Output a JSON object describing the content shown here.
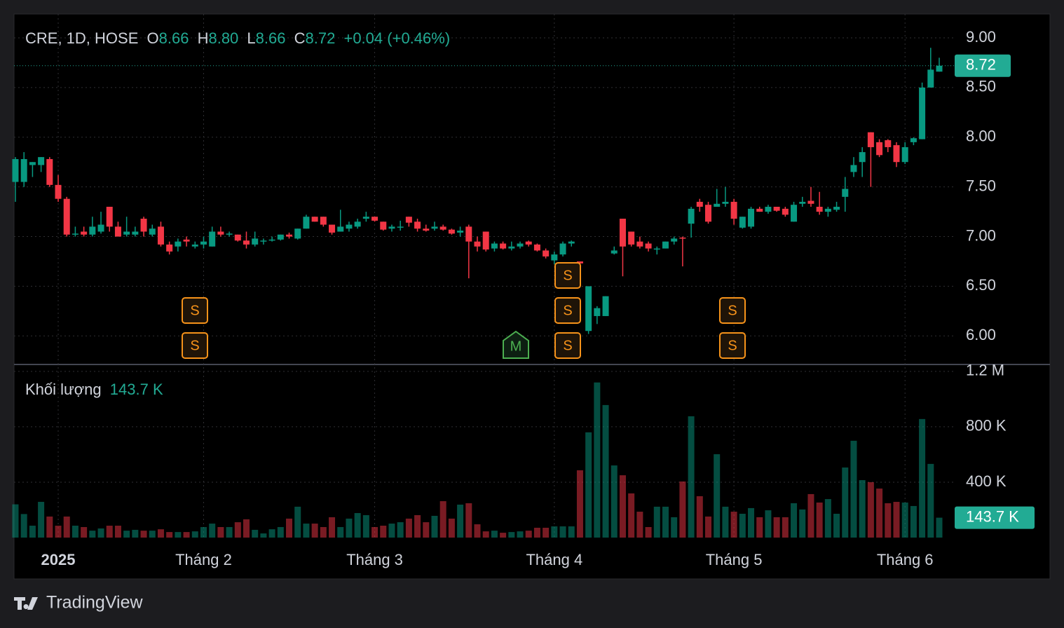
{
  "header": {
    "symbol": "CRE, 1D, HOSE",
    "open": {
      "label": "O",
      "value": "8.66"
    },
    "high": {
      "label": "H",
      "value": "8.80"
    },
    "low": {
      "label": "L",
      "value": "8.66"
    },
    "close": {
      "label": "C",
      "value": "8.72"
    },
    "change": "+0.04",
    "change_percent": "(+0.46%)"
  },
  "chart_data": {
    "type": "candlestick",
    "categories": [
      null,
      null,
      null,
      null,
      null,
      "2025",
      null,
      null,
      null,
      null,
      null,
      null,
      null,
      null,
      null,
      null,
      null,
      null,
      null,
      null,
      null,
      null,
      "Tháng 2",
      null,
      null,
      null,
      null,
      null,
      null,
      null,
      null,
      null,
      null,
      null,
      null,
      null,
      null,
      null,
      null,
      null,
      null,
      null,
      "Tháng 3",
      null,
      null,
      null,
      null,
      null,
      null,
      null,
      null,
      null,
      null,
      null,
      null,
      null,
      null,
      null,
      null,
      null,
      null,
      null,
      null,
      "Tháng 4",
      null,
      null,
      null,
      null,
      null,
      null,
      null,
      null,
      null,
      null,
      null,
      null,
      null,
      null,
      null,
      null,
      null,
      null,
      null,
      null,
      "Tháng 5",
      null,
      null,
      null,
      null,
      null,
      null,
      null,
      null,
      null,
      null,
      null,
      null,
      null,
      null,
      null,
      null,
      null,
      null,
      null,
      "Tháng 6",
      null,
      null,
      null,
      null
    ],
    "open": [
      7.55,
      7.55,
      7.72,
      7.72,
      7.78,
      7.52,
      7.38,
      7.02,
      7.05,
      7.02,
      7.05,
      7.3,
      7.1,
      7.02,
      7.02,
      7.18,
      7.02,
      7.1,
      6.92,
      6.9,
      6.97,
      6.9,
      6.92,
      6.9,
      7.05,
      7.02,
      7.02,
      6.96,
      6.92,
      6.95,
      6.97,
      6.97,
      7.02,
      6.98,
      7.08,
      7.2,
      7.2,
      7.12,
      7.05,
      7.08,
      7.1,
      7.18,
      7.2,
      7.15,
      7.08,
      7.1,
      7.2,
      7.15,
      7.08,
      7.08,
      7.1,
      7.07,
      7.04,
      7.1,
      6.95,
      7.05,
      6.88,
      6.93,
      6.88,
      6.9,
      6.95,
      6.92,
      6.86,
      6.76,
      6.82,
      6.93,
      6.75,
      6.05,
      6.2,
      6.2,
      6.83,
      7.18,
      7.05,
      6.95,
      6.93,
      6.88,
      6.88,
      6.95,
      6.99,
      7.13,
      7.35,
      7.32,
      7.3,
      7.33,
      7.35,
      7.09,
      7.1,
      7.28,
      7.25,
      7.3,
      7.28,
      7.15,
      7.33,
      7.36,
      7.3,
      7.25,
      7.27,
      7.4,
      7.65,
      7.75,
      8.05,
      7.95,
      7.97,
      7.92,
      7.75,
      7.95,
      7.98,
      8.5,
      8.66
    ],
    "high": [
      7.8,
      7.85,
      7.75,
      7.8,
      7.8,
      7.62,
      7.4,
      7.1,
      7.1,
      7.2,
      7.25,
      7.3,
      7.15,
      7.2,
      7.1,
      7.2,
      7.12,
      7.15,
      6.95,
      6.98,
      7.0,
      6.95,
      7.0,
      7.1,
      7.1,
      7.05,
      7.02,
      7.05,
      7.05,
      6.98,
      7.0,
      7.02,
      7.04,
      7.08,
      7.22,
      7.2,
      7.2,
      7.12,
      7.27,
      7.15,
      7.18,
      7.25,
      7.2,
      7.15,
      7.12,
      7.16,
      7.2,
      7.18,
      7.12,
      7.15,
      7.12,
      7.08,
      7.1,
      7.12,
      7.0,
      7.05,
      6.95,
      6.95,
      6.95,
      6.95,
      6.96,
      6.93,
      6.88,
      6.85,
      6.95,
      6.96,
      6.75,
      6.5,
      6.3,
      6.4,
      6.9,
      7.18,
      7.05,
      7.0,
      6.95,
      6.9,
      6.95,
      7.0,
      7.0,
      7.3,
      7.38,
      7.35,
      7.48,
      7.5,
      7.38,
      7.2,
      7.3,
      7.3,
      7.32,
      7.3,
      7.3,
      7.35,
      7.4,
      7.5,
      7.45,
      7.3,
      7.35,
      7.6,
      7.8,
      7.9,
      8.05,
      7.98,
      7.98,
      7.95,
      7.95,
      8.0,
      8.55,
      8.9,
      8.8
    ],
    "low": [
      7.35,
      7.5,
      7.6,
      7.65,
      7.5,
      7.35,
      7.0,
      7.0,
      7.0,
      7.0,
      7.03,
      7.05,
      7.0,
      7.0,
      7.0,
      7.0,
      7.0,
      6.9,
      6.82,
      6.85,
      6.9,
      6.88,
      6.88,
      6.9,
      7.0,
      7.0,
      6.95,
      6.88,
      6.9,
      6.92,
      6.95,
      6.96,
      6.98,
      6.97,
      7.08,
      7.15,
      7.1,
      7.02,
      7.05,
      7.05,
      7.08,
      7.15,
      7.15,
      7.06,
      7.05,
      7.06,
      7.1,
      7.05,
      7.05,
      7.06,
      7.06,
      7.02,
      7.0,
      6.58,
      6.85,
      6.85,
      6.85,
      6.87,
      6.86,
      6.88,
      6.9,
      6.85,
      6.78,
      6.72,
      6.8,
      6.9,
      6.72,
      6.02,
      6.12,
      6.2,
      6.82,
      6.6,
      6.9,
      6.88,
      6.85,
      6.82,
      6.88,
      6.92,
      6.7,
      6.99,
      7.25,
      7.13,
      7.3,
      7.3,
      7.12,
      7.08,
      7.08,
      7.25,
      7.23,
      7.25,
      7.2,
      7.15,
      7.3,
      7.3,
      7.22,
      7.2,
      7.25,
      7.25,
      7.6,
      7.6,
      7.5,
      7.8,
      7.85,
      7.7,
      7.73,
      7.92,
      7.98,
      8.5,
      8.66
    ],
    "close": [
      7.78,
      7.78,
      7.75,
      7.8,
      7.52,
      7.38,
      7.02,
      7.03,
      7.02,
      7.1,
      7.12,
      7.1,
      7.0,
      7.05,
      7.05,
      7.05,
      7.08,
      6.92,
      6.85,
      6.95,
      6.95,
      6.92,
      6.95,
      7.05,
      7.02,
      7.03,
      6.96,
      6.92,
      6.98,
      6.96,
      6.97,
      7.02,
      7.0,
      7.08,
      7.2,
      7.15,
      7.12,
      7.04,
      7.1,
      7.12,
      7.15,
      7.2,
      7.16,
      7.07,
      7.1,
      7.1,
      7.14,
      7.08,
      7.06,
      7.1,
      7.07,
      7.03,
      7.06,
      6.95,
      6.9,
      6.87,
      6.93,
      6.88,
      6.9,
      6.93,
      6.92,
      6.86,
      6.8,
      6.82,
      6.93,
      6.95,
      6.73,
      6.5,
      6.28,
      6.4,
      6.86,
      6.9,
      6.92,
      6.9,
      6.88,
      6.88,
      6.95,
      6.98,
      6.98,
      7.28,
      7.3,
      7.15,
      7.33,
      7.35,
      7.18,
      7.2,
      7.28,
      7.25,
      7.3,
      7.26,
      7.22,
      7.32,
      7.35,
      7.33,
      7.25,
      7.28,
      7.3,
      7.48,
      7.72,
      7.85,
      7.9,
      7.82,
      7.9,
      7.75,
      7.9,
      7.99,
      8.5,
      8.68,
      8.72
    ],
    "volume": [
      240000,
      170000,
      86000,
      258000,
      152000,
      86000,
      152000,
      86000,
      76000,
      50000,
      66000,
      86000,
      86000,
      50000,
      56000,
      50000,
      50000,
      60000,
      40000,
      40000,
      40000,
      45000,
      76000,
      101000,
      76000,
      76000,
      111000,
      132000,
      56000,
      30000,
      60000,
      76000,
      137000,
      223000,
      101000,
      101000,
      76000,
      147000,
      76000,
      137000,
      177000,
      162000,
      76000,
      86000,
      101000,
      111000,
      137000,
      162000,
      111000,
      157000,
      263000,
      137000,
      238000,
      248000,
      96000,
      45000,
      50000,
      35000,
      40000,
      45000,
      50000,
      71000,
      71000,
      81000,
      81000,
      81000,
      486000,
      760000,
      1120000,
      957000,
      521000,
      450000,
      319000,
      187000,
      76000,
      223000,
      223000,
      147000,
      405000,
      876000,
      299000,
      152000,
      602000,
      223000,
      187000,
      172000,
      213000,
      147000,
      197000,
      147000,
      147000,
      248000,
      203000,
      314000,
      253000,
      278000,
      172000,
      506000,
      699000,
      415000,
      400000,
      354000,
      248000,
      258000,
      253000,
      228000,
      856000,
      532000,
      143700
    ],
    "up_color": "#089981",
    "down_color": "#f23645",
    "ylim": [
      5.72,
      9.24
    ],
    "yticks": [
      {
        "value": 6,
        "label": "6.00"
      },
      {
        "value": 6.5,
        "label": "6.50"
      },
      {
        "value": 7,
        "label": "7.00"
      },
      {
        "value": 7.5,
        "label": "7.50"
      },
      {
        "value": 8,
        "label": "8.00"
      },
      {
        "value": 8.5,
        "label": "8.50"
      },
      {
        "value": 9,
        "label": "9.00"
      }
    ],
    "last_price": {
      "value": 8.72,
      "label": "8.72"
    },
    "volume_title": "Khối lượng",
    "volume_last_label": "143.7 K",
    "volume_ylim": [
      0,
      1250000
    ],
    "volume_yticks": [
      {
        "value": 400000,
        "label": "400 K"
      },
      {
        "value": 800000,
        "label": "800 K"
      },
      {
        "value": 1200000,
        "label": "1.2 M"
      }
    ],
    "grid": true,
    "markers": [
      "S",
      "S",
      "S",
      "S",
      "S",
      "S",
      "S",
      "M"
    ]
  },
  "footer": {
    "brand": "TradingView"
  }
}
